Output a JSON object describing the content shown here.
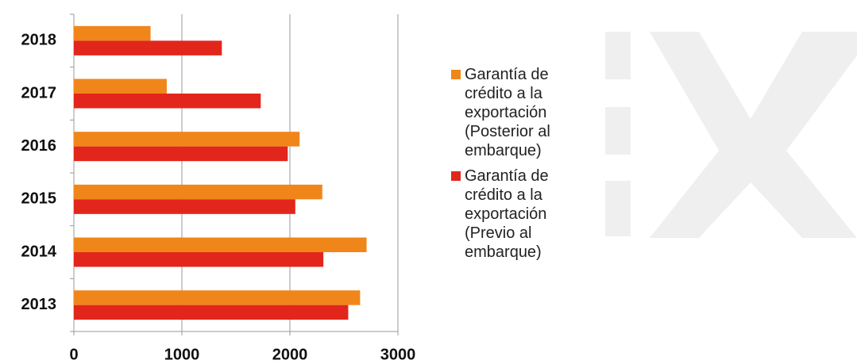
{
  "chart_data": {
    "type": "hbar",
    "categories": [
      "2013",
      "2014",
      "2015",
      "2016",
      "2017",
      "2018"
    ],
    "series": [
      {
        "name": "Garantía de crédito a la exportación (Posterior al embarque)",
        "color": "#f0861a",
        "values": [
          2650,
          2710,
          2300,
          2090,
          860,
          710
        ]
      },
      {
        "name": "Garantía de crédito a la exportación (Previo al embarque)",
        "color": "#e2261c",
        "values": [
          2540,
          2310,
          2050,
          1980,
          1730,
          1370
        ]
      }
    ],
    "xlim": [
      0,
      3000
    ],
    "xticks": [
      0,
      1000,
      2000,
      3000
    ],
    "grid": true,
    "legend": "right"
  }
}
